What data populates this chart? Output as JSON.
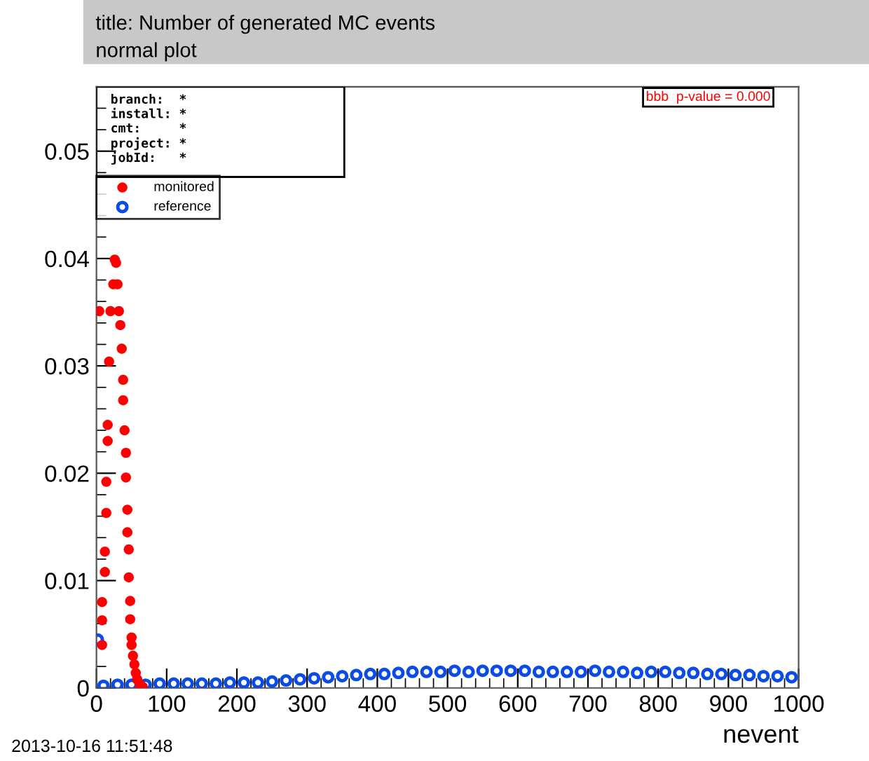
{
  "chart_data": {
    "type": "scatter",
    "title": "title: Number of generated MC events",
    "subtitle": "normal plot",
    "xlabel": "nevent",
    "annotations": [
      "branch:  *",
      "install: *",
      "cmt:     *",
      "project: *",
      "jobId:   *",
      "bbb  p-value = 0.000",
      "2013-10-16 11:51:48"
    ],
    "xlim": [
      0,
      1000
    ],
    "ylim": [
      0,
      0.056
    ],
    "xticks": [
      0,
      100,
      200,
      300,
      400,
      500,
      600,
      700,
      800,
      900,
      1000
    ],
    "yticks": [
      0,
      0.01,
      0.02,
      0.03,
      0.04,
      0.05
    ],
    "grid": false,
    "legend": "top left",
    "marker": "circle",
    "series": [
      {
        "name": "monitored",
        "color": "#ff0000",
        "x": [
          4,
          8,
          8,
          8,
          12,
          12,
          14,
          14,
          16,
          16,
          18,
          20,
          24,
          26,
          28,
          30,
          32,
          34,
          36,
          38,
          38,
          40,
          42,
          42,
          44,
          44,
          46,
          46,
          48,
          48,
          50,
          50,
          52,
          54,
          56,
          58,
          62,
          66
        ],
        "values": [
          0.0351,
          0.004,
          0.0063,
          0.008,
          0.0108,
          0.0127,
          0.0163,
          0.0192,
          0.023,
          0.0245,
          0.0304,
          0.0351,
          0.0376,
          0.0399,
          0.0396,
          0.0376,
          0.0351,
          0.0338,
          0.0316,
          0.0287,
          0.0268,
          0.024,
          0.0219,
          0.0196,
          0.0166,
          0.0145,
          0.0129,
          0.0103,
          0.0081,
          0.0064,
          0.0047,
          0.004,
          0.003,
          0.0022,
          0.0014,
          0.0008,
          0.0003,
          0.0001
        ]
      },
      {
        "name": "reference",
        "color": "#0b4be6",
        "x": [
          2,
          10,
          30,
          50,
          70,
          90,
          110,
          130,
          150,
          170,
          190,
          210,
          230,
          250,
          270,
          290,
          310,
          330,
          350,
          370,
          390,
          410,
          430,
          450,
          470,
          490,
          510,
          530,
          550,
          570,
          590,
          610,
          630,
          650,
          670,
          690,
          710,
          730,
          750,
          770,
          790,
          810,
          830,
          850,
          870,
          890,
          910,
          930,
          950,
          970,
          990
        ],
        "values": [
          0.0045,
          0.0002,
          0.0003,
          0.0003,
          0.0003,
          0.0004,
          0.0004,
          0.0004,
          0.0004,
          0.0004,
          0.0005,
          0.0005,
          0.0005,
          0.0006,
          0.0007,
          0.0008,
          0.0009,
          0.001,
          0.0011,
          0.0012,
          0.0013,
          0.0013,
          0.0014,
          0.0015,
          0.0015,
          0.0015,
          0.0016,
          0.0015,
          0.0016,
          0.0016,
          0.0016,
          0.0016,
          0.0015,
          0.0015,
          0.0015,
          0.0015,
          0.0016,
          0.0015,
          0.0015,
          0.0014,
          0.0015,
          0.0015,
          0.0014,
          0.0014,
          0.0013,
          0.0013,
          0.0012,
          0.0012,
          0.0011,
          0.0011,
          0.001
        ]
      }
    ]
  }
}
